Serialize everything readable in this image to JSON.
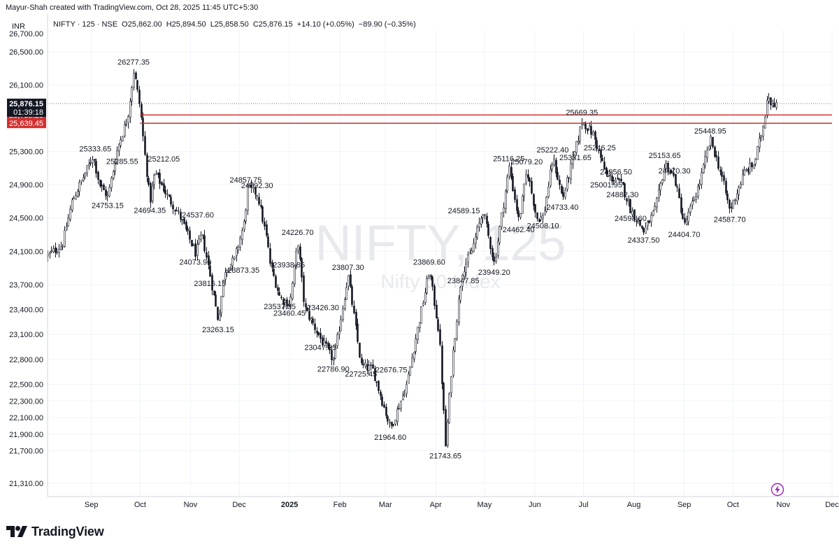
{
  "header": {
    "created_by": "Mayur-Shah created with TradingView.com, Oct 28, 2025 11:45 UTC+5:30",
    "currency": "INR"
  },
  "legend": {
    "symbol": "NIFTY · 125 · NSE",
    "open": "O25,862.00",
    "high": "H25,894.50",
    "low": "L25,858.50",
    "close": "C25,876.15",
    "change": "+14.10 (+0.05%)",
    "change2": "−89.90 (−0.35%)"
  },
  "watermark": {
    "ticker": "NIFTY, 125",
    "name": "Nifty 50 Index"
  },
  "footer": {
    "brand": "TradingView",
    "logo": "tradingview-logo-icon",
    "flash": "lightning-icon"
  },
  "colors": {
    "resistance": "#d32f2f",
    "candle": "#131722",
    "price_tag": "#131722"
  },
  "chart_data": {
    "type": "candlestick",
    "price_axis": {
      "ticks": [
        26500,
        26100,
        25300,
        24900,
        24500,
        24100,
        23700,
        23400,
        23100,
        22800,
        22500,
        22300,
        22100,
        21900,
        21700,
        21310
      ],
      "top_partial": "26,700.00",
      "ylim": [
        21150,
        26760
      ]
    },
    "time_axis": {
      "labels": [
        {
          "label": "Sep",
          "date": "2024-09-01"
        },
        {
          "label": "Oct",
          "date": "2024-10-01"
        },
        {
          "label": "Nov",
          "date": "2024-11-01"
        },
        {
          "label": "Dec",
          "date": "2024-12-01"
        },
        {
          "label": "2025",
          "date": "2025-01-01"
        },
        {
          "label": "Feb",
          "date": "2025-02-01"
        },
        {
          "label": "Mar",
          "date": "2025-03-01"
        },
        {
          "label": "Apr",
          "date": "2025-04-01"
        },
        {
          "label": "May",
          "date": "2025-05-01"
        },
        {
          "label": "Jun",
          "date": "2025-06-01"
        },
        {
          "label": "Jul",
          "date": "2025-07-01"
        },
        {
          "label": "Aug",
          "date": "2025-08-01"
        },
        {
          "label": "Sep",
          "date": "2025-09-01"
        },
        {
          "label": "Oct",
          "date": "2025-10-01"
        },
        {
          "label": "Nov",
          "date": "2025-11-01"
        },
        {
          "label": "Dec",
          "date": "2025-12-01"
        }
      ],
      "xlim": [
        "2024-08-05",
        "2025-12-01"
      ]
    },
    "price_path": [
      [
        "2024-08-05",
        24050
      ],
      [
        "2024-08-14",
        24180
      ],
      [
        "2024-08-20",
        24700
      ],
      [
        "2024-09-02",
        25250
      ],
      [
        "2024-09-06",
        24900
      ],
      [
        "2024-09-11",
        24753.15
      ],
      [
        "2024-09-17",
        25350
      ],
      [
        "2024-09-23",
        25700
      ],
      [
        "2024-09-27",
        26277.35
      ],
      [
        "2024-10-01",
        25800
      ],
      [
        "2024-10-04",
        25212.05
      ],
      [
        "2024-10-07",
        24694.35
      ],
      [
        "2024-10-10",
        25050
      ],
      [
        "2024-10-18",
        24750
      ],
      [
        "2024-10-25",
        24537.6
      ],
      [
        "2024-11-04",
        24073.9
      ],
      [
        "2024-11-08",
        24300
      ],
      [
        "2024-11-13",
        23816.15
      ],
      [
        "2024-11-18",
        23263.15
      ],
      [
        "2024-11-22",
        23873.35
      ],
      [
        "2024-11-28",
        24000
      ],
      [
        "2024-12-04",
        24450
      ],
      [
        "2024-12-06",
        24857.75
      ],
      [
        "2024-12-12",
        24792.3
      ],
      [
        "2024-12-18",
        24226.7
      ],
      [
        "2024-12-20",
        23938.85
      ],
      [
        "2024-12-26",
        23537.35
      ],
      [
        "2025-01-01",
        23460.45
      ],
      [
        "2025-01-06",
        24226.7
      ],
      [
        "2025-01-10",
        23426.3
      ],
      [
        "2025-01-20",
        23047.25
      ],
      [
        "2025-01-28",
        22786.9
      ],
      [
        "2025-02-06",
        23807.3
      ],
      [
        "2025-02-14",
        22725.45
      ],
      [
        "2025-02-21",
        22676.75
      ],
      [
        "2025-03-04",
        21964.6
      ],
      [
        "2025-03-14",
        22500
      ],
      [
        "2025-03-20",
        23100
      ],
      [
        "2025-03-28",
        23869.6
      ],
      [
        "2025-04-03",
        23100
      ],
      [
        "2025-04-07",
        21743.65
      ],
      [
        "2025-04-11",
        22800
      ],
      [
        "2025-04-17",
        23847.85
      ],
      [
        "2025-04-23",
        24100
      ],
      [
        "2025-04-30",
        24589.15
      ],
      [
        "2025-05-07",
        23949.2
      ],
      [
        "2025-05-12",
        24600
      ],
      [
        "2025-05-16",
        25116.25
      ],
      [
        "2025-05-22",
        24462.4
      ],
      [
        "2025-05-27",
        25079.2
      ],
      [
        "2025-06-02",
        24500
      ],
      [
        "2025-06-06",
        24508.1
      ],
      [
        "2025-06-12",
        25222.4
      ],
      [
        "2025-06-18",
        24733.4
      ],
      [
        "2025-06-26",
        25331.65
      ],
      [
        "2025-06-30",
        25669.35
      ],
      [
        "2025-07-07",
        25500
      ],
      [
        "2025-07-11",
        25246.25
      ],
      [
        "2025-07-15",
        25001.95
      ],
      [
        "2025-07-21",
        24956.5
      ],
      [
        "2025-07-25",
        24882.3
      ],
      [
        "2025-07-30",
        24598.6
      ],
      [
        "2025-08-07",
        24337.5
      ],
      [
        "2025-08-14",
        24600
      ],
      [
        "2025-08-20",
        25153.65
      ],
      [
        "2025-08-26",
        24970.3
      ],
      [
        "2025-09-01",
        24404.7
      ],
      [
        "2025-09-10",
        24900
      ],
      [
        "2025-09-17",
        25448.95
      ],
      [
        "2025-09-24",
        25000
      ],
      [
        "2025-09-29",
        24587.7
      ],
      [
        "2025-10-08",
        25050
      ],
      [
        "2025-10-14",
        25150
      ],
      [
        "2025-10-20",
        25650
      ],
      [
        "2025-10-22",
        26000
      ],
      [
        "2025-10-24",
        25900
      ],
      [
        "2025-10-28",
        25876.15
      ]
    ],
    "annotations": [
      {
        "text": "26277.35",
        "date": "2024-09-27",
        "price": 26277.35,
        "pos": "above"
      },
      {
        "text": "25333.65",
        "date": "2024-09-15",
        "price": 25333.65,
        "pos": "left"
      },
      {
        "text": "25285.55",
        "date": "2024-09-20",
        "price": 25285.55,
        "pos": "below"
      },
      {
        "text": "24753.15",
        "date": "2024-09-11",
        "price": 24753.15,
        "pos": "below"
      },
      {
        "text": "25212.05",
        "date": "2024-10-04",
        "price": 25212.05,
        "pos": "right"
      },
      {
        "text": "24694.35",
        "date": "2024-10-07",
        "price": 24694.35,
        "pos": "below"
      },
      {
        "text": "24537.60",
        "date": "2024-10-25",
        "price": 24537.6,
        "pos": "right"
      },
      {
        "text": "24073.90",
        "date": "2024-11-04",
        "price": 24073.9,
        "pos": "below"
      },
      {
        "text": "23816.15",
        "date": "2024-11-13",
        "price": 23816.15,
        "pos": "below"
      },
      {
        "text": "23873.35",
        "date": "2024-11-22",
        "price": 23873.35,
        "pos": "right"
      },
      {
        "text": "23263.15",
        "date": "2024-11-18",
        "price": 23263.15,
        "pos": "below"
      },
      {
        "text": "24857.75",
        "date": "2024-12-05",
        "price": 24857.75,
        "pos": "above"
      },
      {
        "text": "24792.30",
        "date": "2024-12-12",
        "price": 24792.3,
        "pos": "above"
      },
      {
        "text": "24226.70",
        "date": "2025-01-06",
        "price": 24226.7,
        "pos": "above"
      },
      {
        "text": "23938.85",
        "date": "2024-12-20",
        "price": 23938.85,
        "pos": "right"
      },
      {
        "text": "23537.35",
        "date": "2024-12-26",
        "price": 23537.35,
        "pos": "below"
      },
      {
        "text": "23460.45",
        "date": "2025-01-01",
        "price": 23460.45,
        "pos": "below"
      },
      {
        "text": "23426.30",
        "date": "2025-01-10",
        "price": 23426.3,
        "pos": "right"
      },
      {
        "text": "23047.25",
        "date": "2025-01-20",
        "price": 23047.25,
        "pos": "below"
      },
      {
        "text": "23807.30",
        "date": "2025-02-06",
        "price": 23807.3,
        "pos": "above"
      },
      {
        "text": "22786.90",
        "date": "2025-01-28",
        "price": 22786.9,
        "pos": "below"
      },
      {
        "text": "22725.45",
        "date": "2025-02-14",
        "price": 22725.45,
        "pos": "below"
      },
      {
        "text": "22676.75",
        "date": "2025-02-21",
        "price": 22676.75,
        "pos": "right"
      },
      {
        "text": "21964.60",
        "date": "2025-03-04",
        "price": 21964.6,
        "pos": "below"
      },
      {
        "text": "23869.60",
        "date": "2025-03-28",
        "price": 23869.6,
        "pos": "above"
      },
      {
        "text": "21743.65",
        "date": "2025-04-07",
        "price": 21743.65,
        "pos": "below"
      },
      {
        "text": "23847.85",
        "date": "2025-04-18",
        "price": 23847.85,
        "pos": "below"
      },
      {
        "text": "24589.15",
        "date": "2025-04-30",
        "price": 24589.15,
        "pos": "left"
      },
      {
        "text": "23949.20",
        "date": "2025-05-07",
        "price": 23949.2,
        "pos": "below"
      },
      {
        "text": "25116.25",
        "date": "2025-05-16",
        "price": 25116.25,
        "pos": "above"
      },
      {
        "text": "24462.40",
        "date": "2025-05-22",
        "price": 24462.4,
        "pos": "below"
      },
      {
        "text": "25079.20",
        "date": "2025-05-27",
        "price": 25079.2,
        "pos": "above"
      },
      {
        "text": "24508.10",
        "date": "2025-06-06",
        "price": 24508.1,
        "pos": "below"
      },
      {
        "text": "25222.40",
        "date": "2025-06-12",
        "price": 25222.4,
        "pos": "above"
      },
      {
        "text": "24733.40",
        "date": "2025-06-18",
        "price": 24733.4,
        "pos": "below"
      },
      {
        "text": "25331.65",
        "date": "2025-06-26",
        "price": 25331.65,
        "pos": "below"
      },
      {
        "text": "25669.35",
        "date": "2025-06-30",
        "price": 25669.35,
        "pos": "above"
      },
      {
        "text": "25246.25",
        "date": "2025-07-11",
        "price": 25246.25,
        "pos": "above"
      },
      {
        "text": "25001.95",
        "date": "2025-07-15",
        "price": 25001.95,
        "pos": "below"
      },
      {
        "text": "24956.50",
        "date": "2025-07-21",
        "price": 24956.5,
        "pos": "above"
      },
      {
        "text": "24882.30",
        "date": "2025-07-25",
        "price": 24882.3,
        "pos": "below"
      },
      {
        "text": "24598.60",
        "date": "2025-07-30",
        "price": 24598.6,
        "pos": "below"
      },
      {
        "text": "24337.50",
        "date": "2025-08-07",
        "price": 24337.5,
        "pos": "below"
      },
      {
        "text": "25153.65",
        "date": "2025-08-20",
        "price": 25153.65,
        "pos": "above"
      },
      {
        "text": "24970.30",
        "date": "2025-08-26",
        "price": 24970.3,
        "pos": "above"
      },
      {
        "text": "24404.70",
        "date": "2025-09-01",
        "price": 24404.7,
        "pos": "below"
      },
      {
        "text": "25448.95",
        "date": "2025-09-17",
        "price": 25448.95,
        "pos": "above"
      },
      {
        "text": "24587.70",
        "date": "2025-09-29",
        "price": 24587.7,
        "pos": "below"
      }
    ],
    "horizontal_lines": [
      {
        "price": 25739.2,
        "from": "2024-10-01",
        "label": "25,739.20",
        "color": "#d32f2f"
      },
      {
        "price": 25639.45,
        "from": "2024-10-01",
        "label": "25,639.45",
        "color": "#d32f2f"
      }
    ],
    "current_price": {
      "price": 25876.15,
      "label": "25,876.15",
      "countdown": "01:39:18"
    },
    "grid": true
  }
}
